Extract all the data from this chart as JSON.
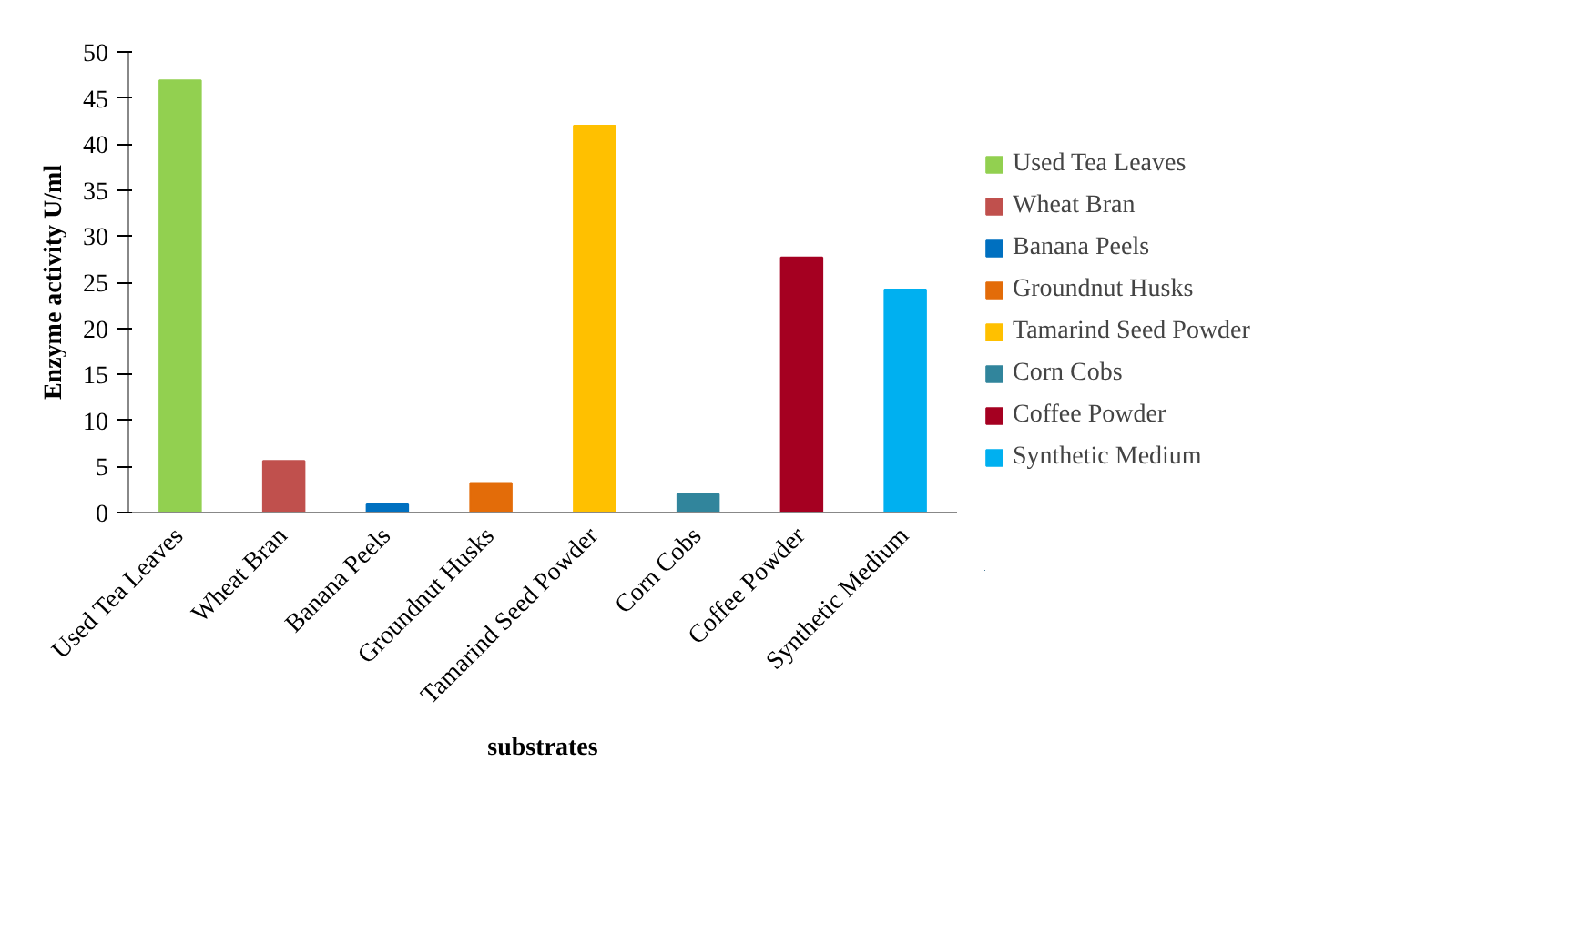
{
  "chart_data": {
    "type": "bar",
    "xlabel": "substrates",
    "ylabel": "Enzyme activity U/ml",
    "stacked": true,
    "categories": [
      "Used Tea Leaves",
      "Wheat Bran",
      "Banana Peels",
      "Groundnut Husks",
      "Tamarind Seed Powder",
      "Corn Cobs",
      "Coffee Powder",
      "Synthetic Medium"
    ],
    "series": [
      {
        "name": "Used Tea Leaves",
        "color": "#92d050",
        "values": [
          46.9,
          null,
          null,
          null,
          null,
          null,
          null,
          null
        ]
      },
      {
        "name": "Wheat Bran",
        "color": "#c0504d",
        "values": [
          null,
          5.6,
          null,
          null,
          null,
          null,
          null,
          null
        ]
      },
      {
        "name": "Banana Peels",
        "color": "#0070c0",
        "values": [
          null,
          null,
          0.9,
          null,
          null,
          null,
          null,
          null
        ]
      },
      {
        "name": "Groundnut Husks",
        "color": "#e36c09",
        "values": [
          null,
          null,
          null,
          3.2,
          null,
          null,
          null,
          null
        ]
      },
      {
        "name": "Tamarind Seed Powder",
        "color": "#ffc000",
        "values": [
          null,
          null,
          null,
          null,
          42.0,
          null,
          null,
          null
        ]
      },
      {
        "name": "Corn Cobs",
        "color": "#31859c",
        "values": [
          null,
          null,
          null,
          null,
          null,
          2.0,
          null,
          null
        ]
      },
      {
        "name": "Coffee Powder",
        "color": "#a50021",
        "values": [
          null,
          null,
          null,
          null,
          null,
          null,
          27.7,
          null
        ]
      },
      {
        "name": "Synthetic Medium",
        "color": "#00b0f0",
        "values": [
          null,
          null,
          null,
          null,
          null,
          null,
          null,
          24.2
        ]
      }
    ],
    "ylim": [
      0,
      50
    ],
    "yticks": [
      0,
      5,
      10,
      15,
      20,
      25,
      30,
      35,
      40,
      45,
      50
    ],
    "grid": false,
    "legend": "right"
  }
}
